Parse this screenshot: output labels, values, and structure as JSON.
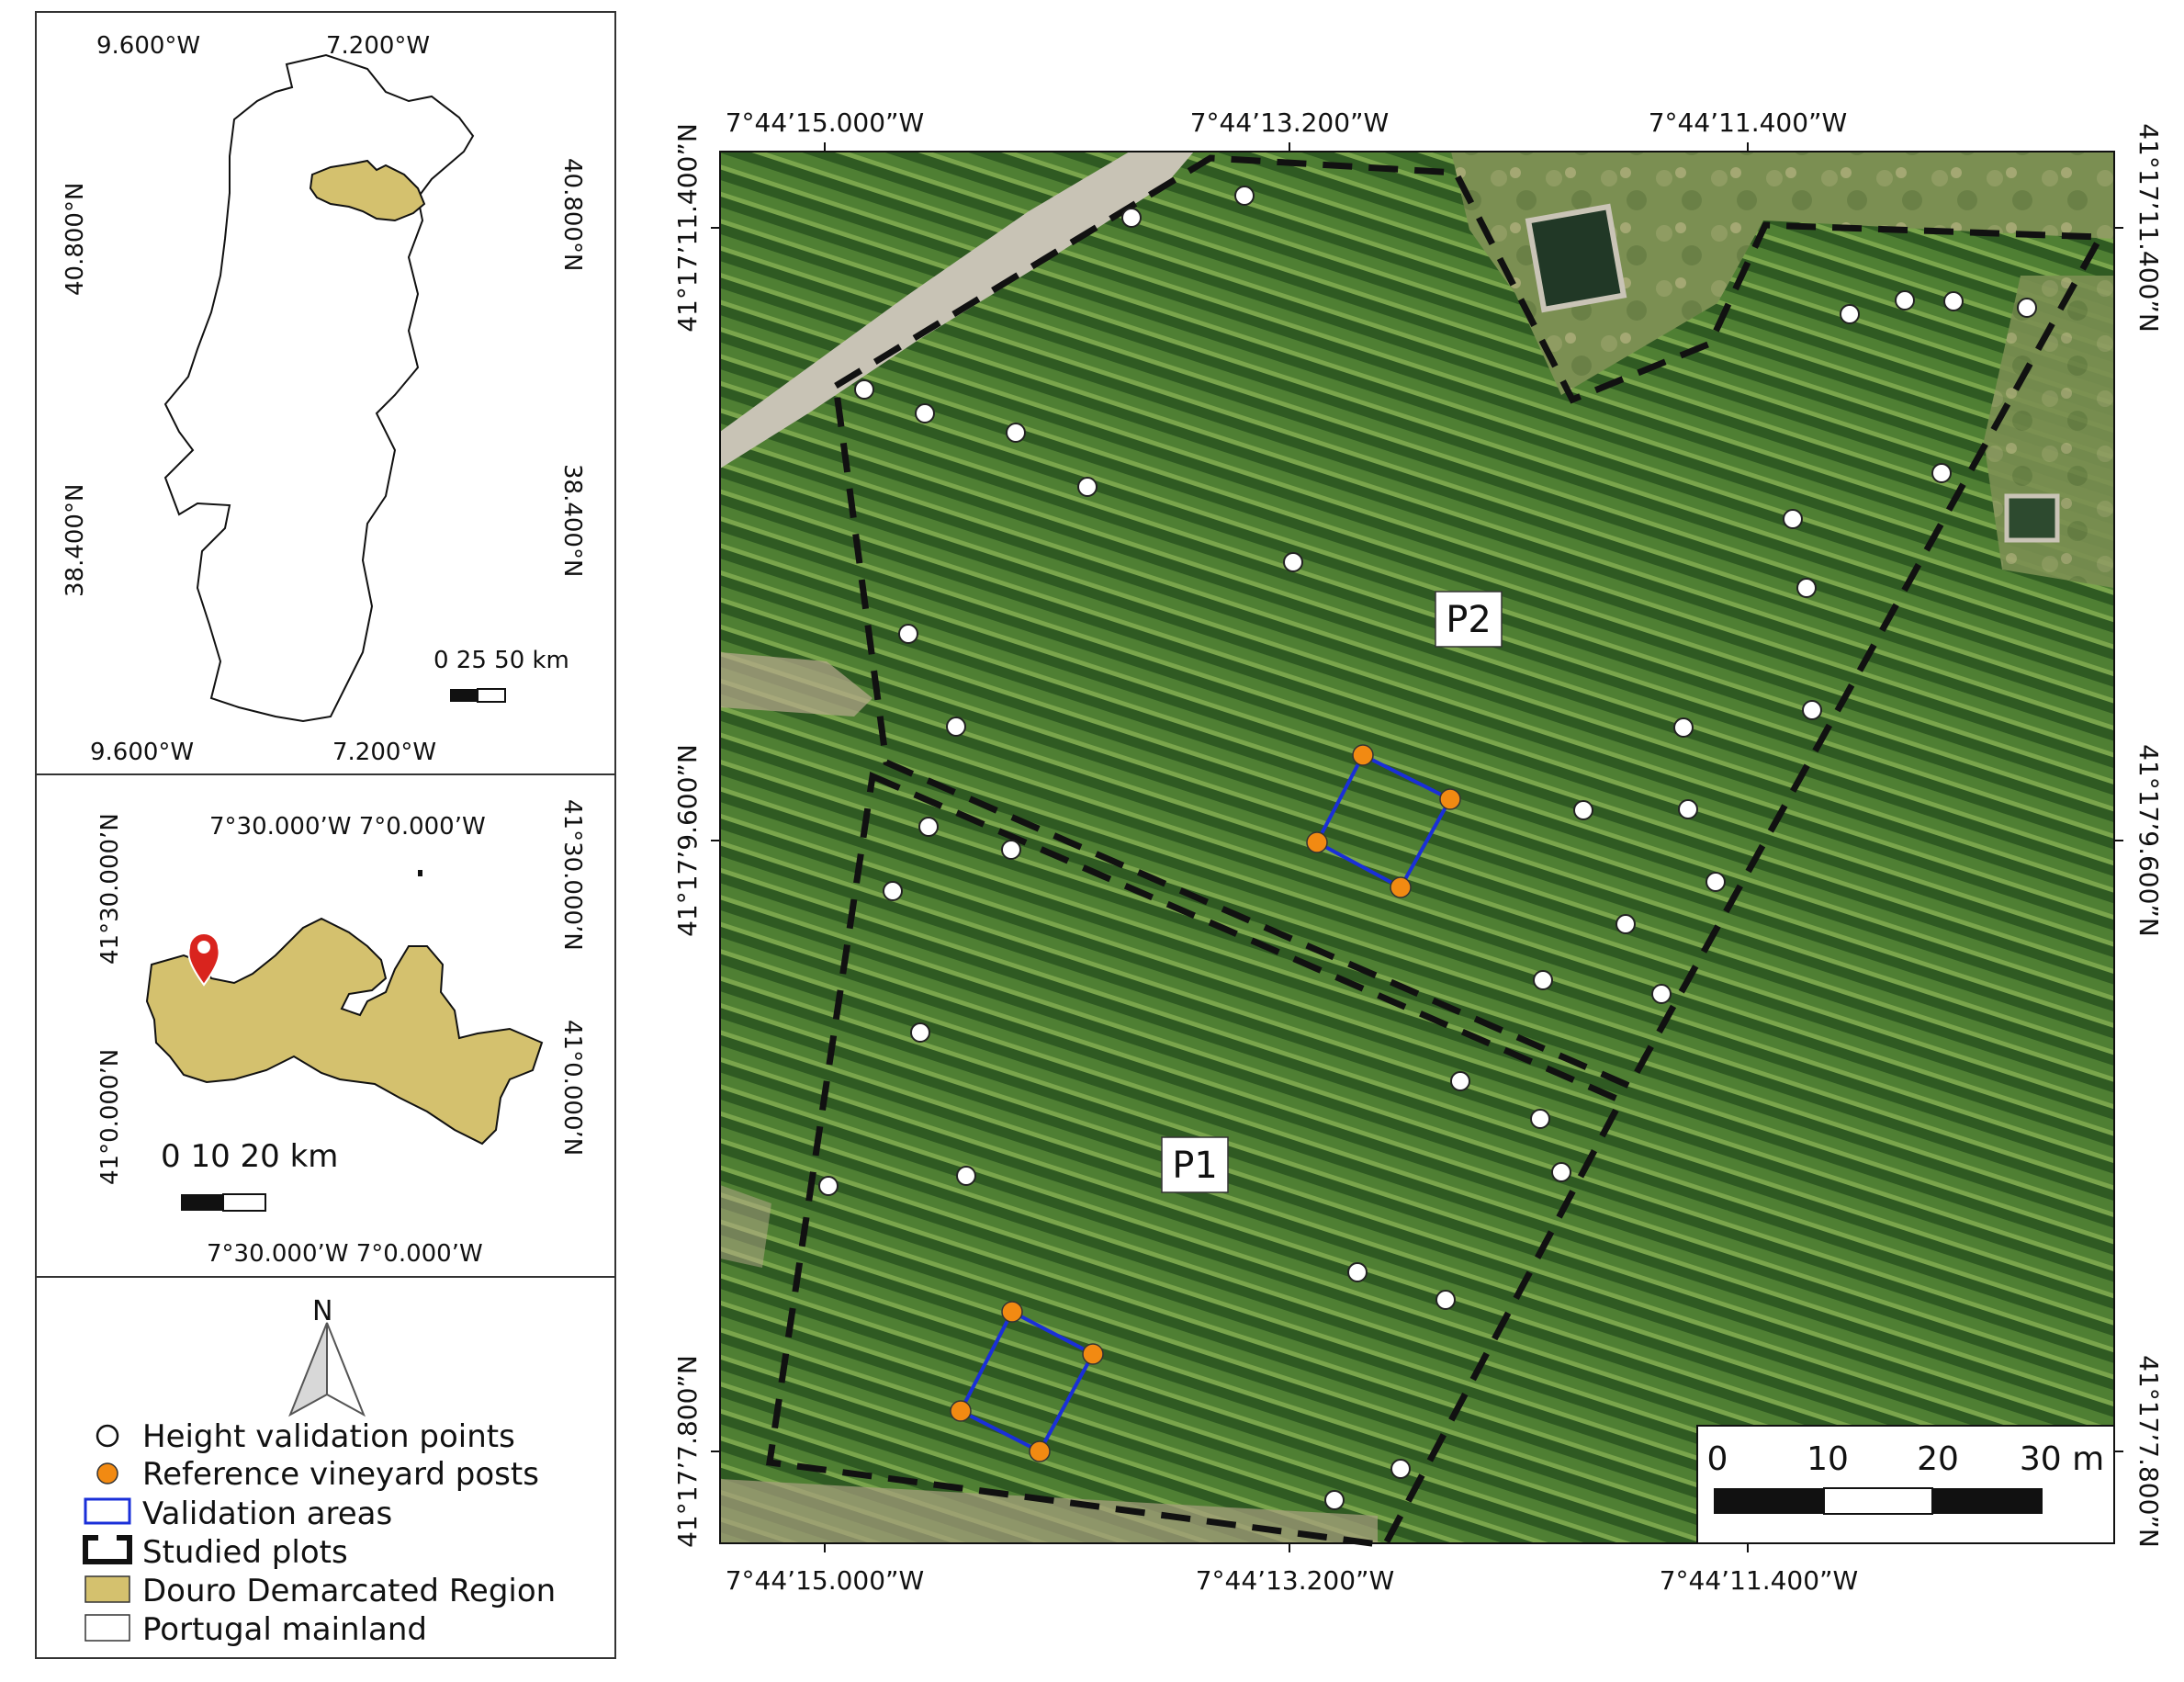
{
  "inset_portugal": {
    "top_left_lon": "9.600°W",
    "top_right_lon": "7.200°W",
    "bottom_left_lon": "9.600°W",
    "bottom_right_lon": "7.200°W",
    "left_lat_top": "40.800°N",
    "left_lat_bottom": "38.400°N",
    "right_lat_top": "40.800°N",
    "right_lat_bottom": "38.400°N",
    "scale_label": "0 25 50 km"
  },
  "inset_douro": {
    "top_lons": "7°30.000’W 7°0.000’W",
    "bottom_lons": "7°30.000’W 7°0.000’W",
    "left_lat_top": "41°30.000’N",
    "left_lat_bottom": "41°0.000’N",
    "right_lat_top": "41°30.000’N",
    "right_lat_bottom": "41°0.000’N",
    "scale_label": "0  10  20 km"
  },
  "legend": {
    "north": "N",
    "items": [
      {
        "label": "Height validation points",
        "symbol": "white-circle"
      },
      {
        "label": "Reference vineyard posts",
        "symbol": "orange-circle"
      },
      {
        "label": "Validation areas",
        "symbol": "blue-rectangle"
      },
      {
        "label": "Studied plots",
        "symbol": "black-dashed-bracket"
      },
      {
        "label": "Douro Demarcated Region",
        "symbol": "khaki-fill"
      },
      {
        "label": "Portugal mainland",
        "symbol": "white-fill"
      }
    ]
  },
  "main_map": {
    "top_lon_1": "7°44’15.000”W",
    "top_lon_2": "7°44’13.200”W",
    "top_lon_3": "7°44’11.400”W",
    "bottom_lon_1": "7°44’15.000”W",
    "bottom_lon_2": "7°44’13.200”W",
    "bottom_lon_3": "7°44’11.400”W",
    "left_lat_1": "41°17’11.400”N",
    "left_lat_2": "41°17’9.600”N",
    "left_lat_3": "41°17’7.800”N",
    "right_lat_1": "41°17’11.400”N",
    "right_lat_2": "41°17’9.600”N",
    "right_lat_3": "41°17’7.800”N",
    "plot_labels": [
      "P2",
      "P1"
    ],
    "scale_ticks": [
      "0",
      "10",
      "20",
      "30 m"
    ]
  },
  "colors": {
    "douro_fill": "#d4c16e",
    "vine_dark": "#3d6b2a",
    "vine_light": "#6e9a44",
    "validation_area": "#1a2fd8",
    "reference_post": "#f28a12",
    "location_pin": "#d9241e"
  }
}
